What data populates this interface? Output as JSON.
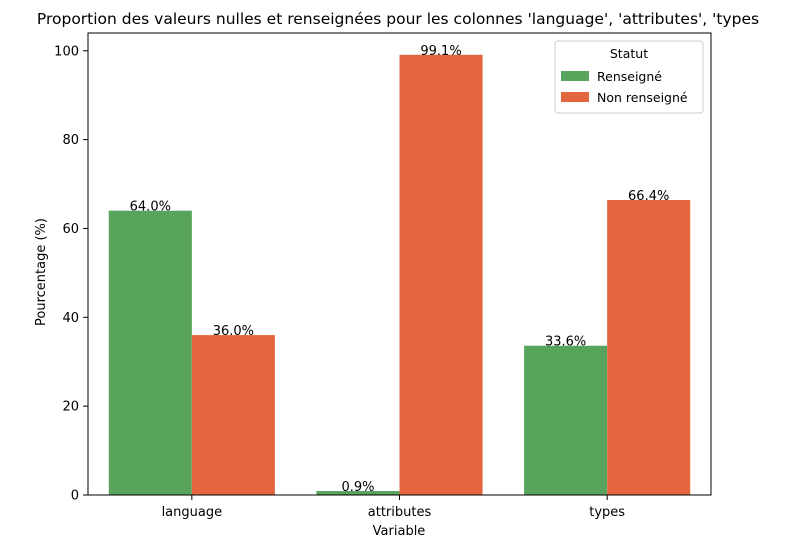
{
  "chart_data": {
    "type": "bar",
    "title": "Proportion des valeurs nulles et renseignées pour les colonnes 'language', 'attributes', 'types",
    "xlabel": "Variable",
    "ylabel": "Pourcentage (%)",
    "categories": [
      "language",
      "attributes",
      "types"
    ],
    "series": [
      {
        "name": "Renseigné",
        "values": [
          64.0,
          0.9,
          33.6
        ],
        "labels": [
          "64.0%",
          "0.9%",
          "33.6%"
        ],
        "color": "#58a45c"
      },
      {
        "name": "Non renseigné",
        "values": [
          36.0,
          99.1,
          66.4
        ],
        "labels": [
          "36.0%",
          "99.1%",
          "66.4%"
        ],
        "color": "#e4663f"
      }
    ],
    "ylim": [
      0,
      104
    ],
    "yticks": [
      0,
      20,
      40,
      60,
      80,
      100
    ],
    "grid": false,
    "legend": {
      "title": "Statut",
      "placement": "top-right"
    }
  }
}
